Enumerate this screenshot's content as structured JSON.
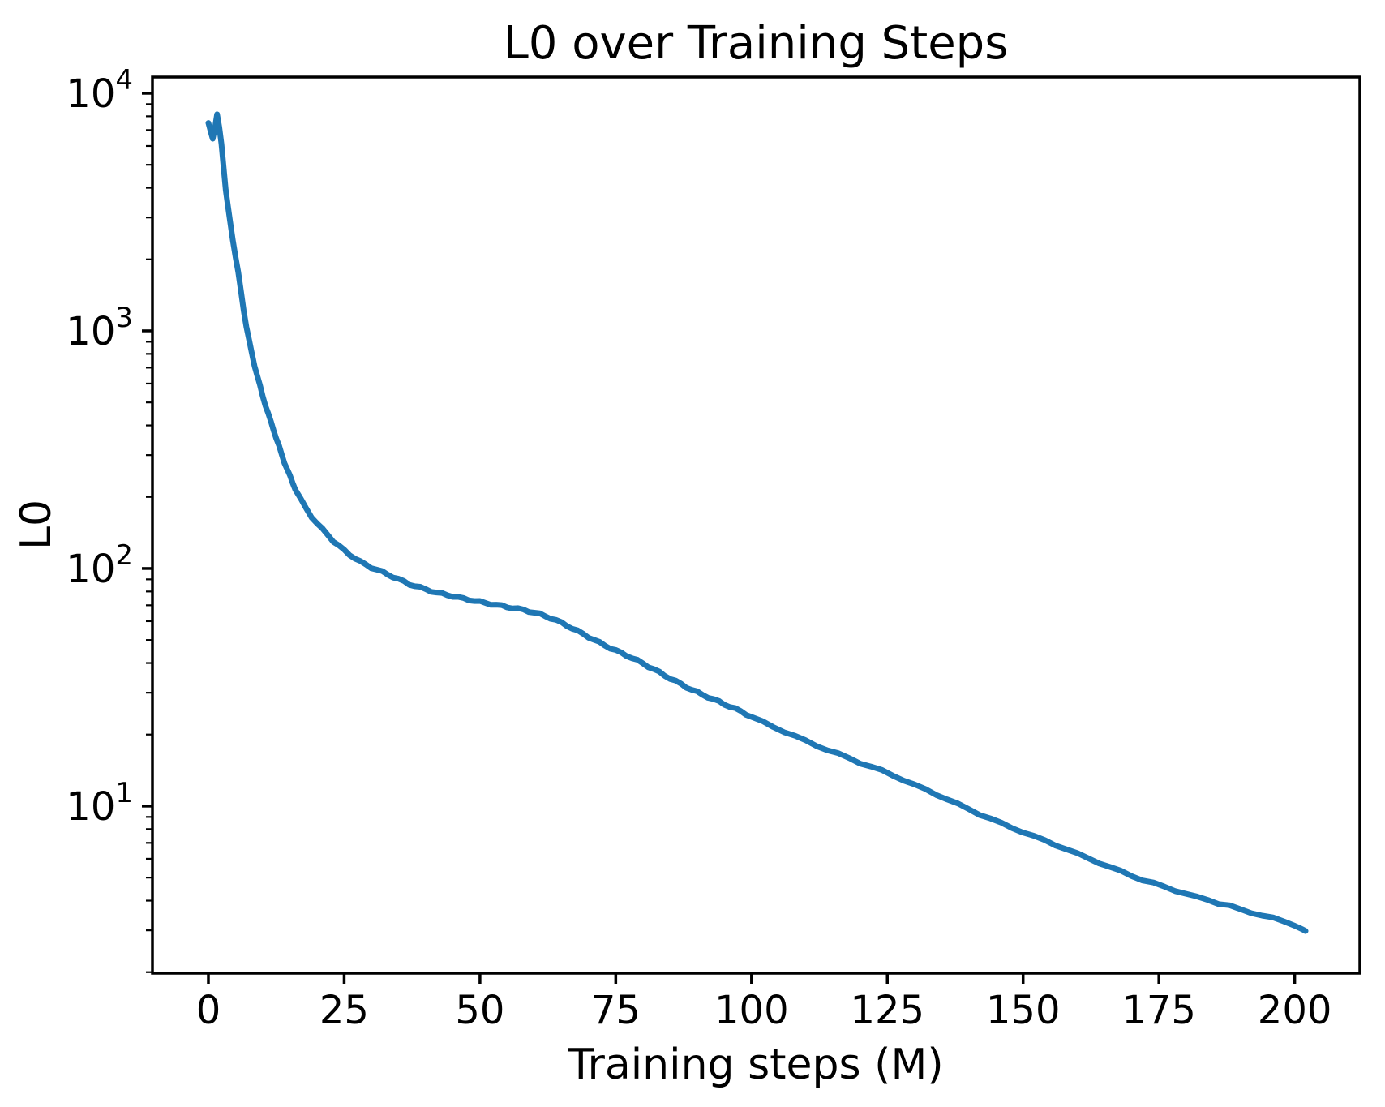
{
  "title": "L0 over Training Steps",
  "x_axis": {
    "label": "Training steps (M)",
    "ticks": [
      0,
      25,
      50,
      75,
      100,
      125,
      150,
      175,
      200
    ],
    "lim": [
      -10.3,
      212.0
    ]
  },
  "y_axis": {
    "label": "L0",
    "scale": "log",
    "ticks": [
      {
        "value": 10000,
        "mantissa": "10",
        "exponent": "4"
      },
      {
        "value": 1000,
        "mantissa": "10",
        "exponent": "3"
      },
      {
        "value": 100,
        "mantissa": "10",
        "exponent": "2"
      },
      {
        "value": 10,
        "mantissa": "10",
        "exponent": "1"
      }
    ],
    "lim": [
      1.98,
      11700
    ]
  },
  "colors": {
    "line": "#1f77b4",
    "text": "#000000",
    "background": "#ffffff"
  },
  "line_width": 7,
  "chart_data": {
    "type": "line",
    "title": "L0 over Training Steps",
    "xlabel": "Training steps (M)",
    "ylabel": "L0",
    "yscale": "log",
    "grid": false,
    "legend": false,
    "xlim": [
      -10.3,
      212.0
    ],
    "ylim": [
      1.98,
      11700
    ],
    "series": [
      {
        "name": "L0",
        "color": "#1f77b4",
        "points": [
          [
            0,
            7500
          ],
          [
            0.4,
            7000
          ],
          [
            0.8,
            6450
          ],
          [
            1.2,
            7100
          ],
          [
            1.6,
            8250
          ],
          [
            2.0,
            7300
          ],
          [
            2.4,
            6100
          ],
          [
            2.8,
            4900
          ],
          [
            3.2,
            3950
          ],
          [
            3.6,
            3350
          ],
          [
            4.0,
            2850
          ],
          [
            4.5,
            2400
          ],
          [
            5.0,
            2050
          ],
          [
            5.5,
            1750
          ],
          [
            6.0,
            1450
          ],
          [
            6.5,
            1220
          ],
          [
            7.0,
            1040
          ],
          [
            7.5,
            910
          ],
          [
            8.0,
            805
          ],
          [
            8.5,
            720
          ],
          [
            9.0,
            650
          ],
          [
            9.5,
            590
          ],
          [
            10,
            535
          ],
          [
            10.5,
            490
          ],
          [
            11,
            450
          ],
          [
            11.5,
            415
          ],
          [
            12,
            383
          ],
          [
            12.5,
            352
          ],
          [
            13,
            325
          ],
          [
            13.5,
            300
          ],
          [
            14,
            278
          ],
          [
            14.5,
            260
          ],
          [
            15,
            244
          ],
          [
            15.5,
            230
          ],
          [
            16,
            216
          ],
          [
            17,
            196
          ],
          [
            18,
            179
          ],
          [
            19,
            166
          ],
          [
            20,
            156
          ],
          [
            21,
            147
          ],
          [
            22,
            139
          ],
          [
            23,
            131
          ],
          [
            24,
            125
          ],
          [
            25,
            119
          ],
          [
            26,
            114
          ],
          [
            27,
            110
          ],
          [
            28,
            106
          ],
          [
            29,
            103
          ],
          [
            30,
            100.5
          ],
          [
            31,
            98.5
          ],
          [
            32,
            96.5
          ],
          [
            33,
            94.5
          ],
          [
            34,
            92.5
          ],
          [
            35,
            90.5
          ],
          [
            36,
            88.5
          ],
          [
            37,
            86.5
          ],
          [
            38,
            85
          ],
          [
            39,
            83.5
          ],
          [
            40,
            82
          ],
          [
            41,
            80.5
          ],
          [
            42,
            79
          ],
          [
            43,
            78
          ],
          [
            44,
            77
          ],
          [
            45,
            76
          ],
          [
            46,
            75
          ],
          [
            47,
            74.3
          ],
          [
            48,
            73.6
          ],
          [
            49,
            73
          ],
          [
            50,
            72.4
          ],
          [
            51,
            71.8
          ],
          [
            52,
            71.2
          ],
          [
            53,
            70.6
          ],
          [
            54,
            70
          ],
          [
            55,
            69.3
          ],
          [
            56,
            68.6
          ],
          [
            57,
            67.8
          ],
          [
            58,
            67
          ],
          [
            59,
            66
          ],
          [
            60,
            65
          ],
          [
            61,
            63.9
          ],
          [
            62,
            62.7
          ],
          [
            63,
            61.5
          ],
          [
            64,
            60.2
          ],
          [
            65,
            58.8
          ],
          [
            66,
            57.4
          ],
          [
            67,
            56
          ],
          [
            68,
            54.6
          ],
          [
            69,
            53.2
          ],
          [
            70,
            51.8
          ],
          [
            71,
            50.4
          ],
          [
            72,
            49
          ],
          [
            73,
            47.7
          ],
          [
            74,
            46.4
          ],
          [
            75,
            45.2
          ],
          [
            76,
            44
          ],
          [
            77,
            42.9
          ],
          [
            78,
            41.8
          ],
          [
            79,
            40.7
          ],
          [
            80,
            39.6
          ],
          [
            81,
            38.5
          ],
          [
            82,
            37.5
          ],
          [
            83,
            36.5
          ],
          [
            84,
            35.5
          ],
          [
            85,
            34.6
          ],
          [
            86,
            33.7
          ],
          [
            87,
            32.8
          ],
          [
            88,
            31.9
          ],
          [
            89,
            31.1
          ],
          [
            90,
            30.3
          ],
          [
            91,
            29.5
          ],
          [
            92,
            28.8
          ],
          [
            93,
            28.1
          ],
          [
            94,
            27.4
          ],
          [
            95,
            26.7
          ],
          [
            96,
            26.1
          ],
          [
            97,
            25.5
          ],
          [
            98,
            24.9
          ],
          [
            99,
            24.3
          ],
          [
            100,
            23.7
          ],
          [
            102,
            22.6
          ],
          [
            104,
            21.6
          ],
          [
            106,
            20.7
          ],
          [
            108,
            19.8
          ],
          [
            110,
            18.9
          ],
          [
            112,
            18.1
          ],
          [
            114,
            17.3
          ],
          [
            116,
            16.6
          ],
          [
            118,
            15.9
          ],
          [
            120,
            15.2
          ],
          [
            122,
            14.6
          ],
          [
            124,
            14.0
          ],
          [
            126,
            13.4
          ],
          [
            128,
            12.8
          ],
          [
            130,
            12.2
          ],
          [
            132,
            11.7
          ],
          [
            134,
            11.2
          ],
          [
            136,
            10.7
          ],
          [
            138,
            10.2
          ],
          [
            140,
            9.75
          ],
          [
            142,
            9.3
          ],
          [
            144,
            8.9
          ],
          [
            146,
            8.5
          ],
          [
            148,
            8.15
          ],
          [
            150,
            7.8
          ],
          [
            152,
            7.45
          ],
          [
            154,
            7.15
          ],
          [
            156,
            6.85
          ],
          [
            158,
            6.55
          ],
          [
            160,
            6.25
          ],
          [
            162,
            6.0
          ],
          [
            164,
            5.75
          ],
          [
            166,
            5.5
          ],
          [
            168,
            5.3
          ],
          [
            170,
            5.1
          ],
          [
            172,
            4.9
          ],
          [
            174,
            4.75
          ],
          [
            176,
            4.6
          ],
          [
            178,
            4.45
          ],
          [
            180,
            4.3
          ],
          [
            182,
            4.15
          ],
          [
            184,
            4.05
          ],
          [
            186,
            3.9
          ],
          [
            188,
            3.8
          ],
          [
            190,
            3.65
          ],
          [
            192,
            3.55
          ],
          [
            194,
            3.45
          ],
          [
            196,
            3.35
          ],
          [
            198,
            3.25
          ],
          [
            200,
            3.15
          ],
          [
            201,
            3.05
          ],
          [
            201.5,
            3.0
          ],
          [
            202,
            3.0
          ]
        ]
      }
    ]
  }
}
